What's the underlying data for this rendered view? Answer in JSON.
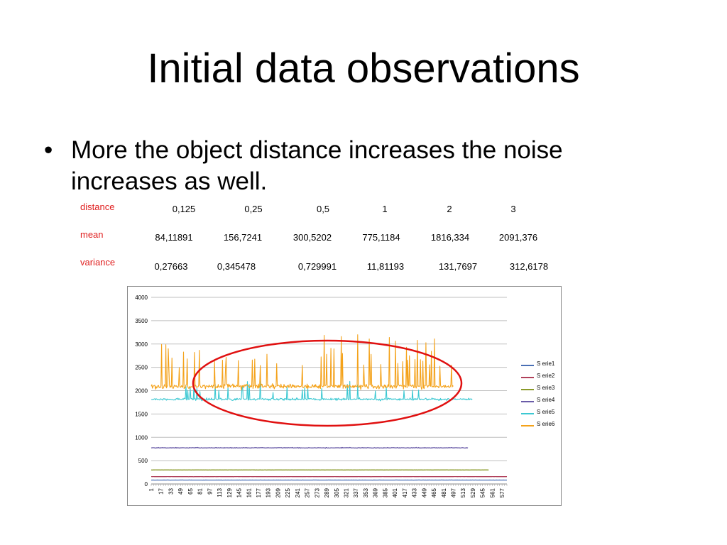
{
  "slide": {
    "title": "Initial data observations",
    "bullet_mark": "•",
    "bullet_text": "More the object distance increases the noise increases as well."
  },
  "table": {
    "labels": {
      "distance": "distance",
      "mean": "mean",
      "variance": "variance"
    },
    "distance": [
      "0,125",
      "0,25",
      "0,5",
      "1",
      "2",
      "3"
    ],
    "mean": [
      "84,11891",
      "156,7241",
      "300,5202",
      "775,1184",
      "1816,334",
      "2091,376"
    ],
    "variance": [
      "0,27663",
      "0,345478",
      "0,729991",
      "11,81193",
      "131,7697",
      "312,6178"
    ]
  },
  "colors": {
    "table_label": "#e02020",
    "highlight_ellipse": "#e01010",
    "gridline": "#bfbfbf"
  },
  "chart_data": {
    "type": "line",
    "title": "",
    "xlabel": "",
    "ylabel": "",
    "ylim": [
      0,
      4000
    ],
    "yticks": [
      0,
      500,
      1000,
      1500,
      2000,
      2500,
      3000,
      3500,
      4000
    ],
    "xlim": [
      1,
      585
    ],
    "xticks": [
      1,
      17,
      33,
      49,
      65,
      81,
      97,
      113,
      129,
      145,
      161,
      177,
      193,
      209,
      225,
      241,
      257,
      273,
      289,
      305,
      321,
      337,
      353,
      369,
      385,
      401,
      417,
      433,
      449,
      465,
      481,
      497,
      513,
      529,
      545,
      561,
      577
    ],
    "grid": "horizontal",
    "legend_position": "right",
    "series": [
      {
        "name": "S erie1",
        "color": "#4a6fb5",
        "n_points": 585,
        "level": 84,
        "variance": 0.28
      },
      {
        "name": "S erie2",
        "color": "#b0405a",
        "n_points": 585,
        "level": 157,
        "variance": 0.35
      },
      {
        "name": "S erie3",
        "color": "#8a9a2a",
        "n_points": 555,
        "level": 301,
        "variance": 0.73
      },
      {
        "name": "S erie4",
        "color": "#6a5ca8",
        "n_points": 521,
        "level": 775,
        "variance": 11.8
      },
      {
        "name": "S erie5",
        "color": "#3cc8d2",
        "n_points": 528,
        "level": 1816,
        "variance": 131.8
      },
      {
        "name": "S erie6",
        "color": "#f4a21a",
        "n_points": 497,
        "level": 2091,
        "variance": 312.6
      }
    ]
  }
}
